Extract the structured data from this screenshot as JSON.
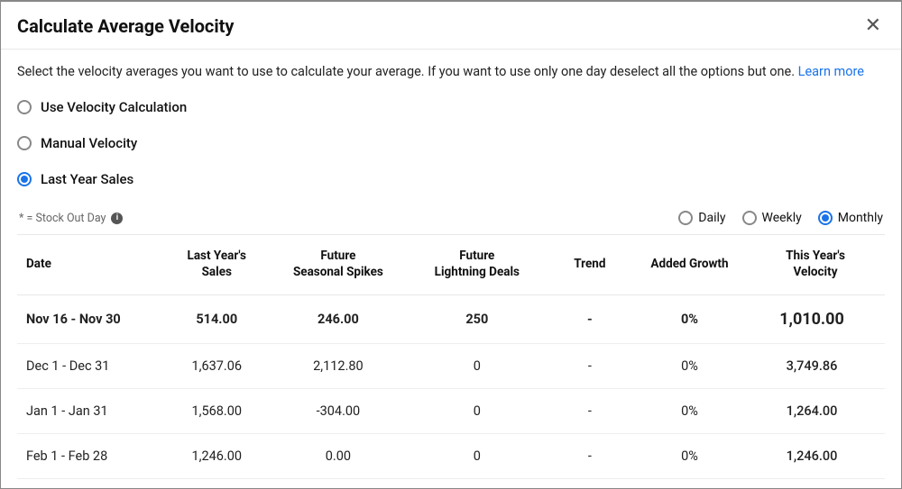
{
  "modal": {
    "title": "Calculate Average Velocity",
    "close_glyph": "✕",
    "description": "Select the velocity averages you want to use to calculate your average. If you want to use only one day deselect all the options but one.",
    "learn_more": "Learn more"
  },
  "velocity_source": {
    "options": [
      {
        "key": "calc",
        "label": "Use Velocity Calculation",
        "selected": false
      },
      {
        "key": "manual",
        "label": "Manual Velocity",
        "selected": false
      },
      {
        "key": "last",
        "label": "Last Year Sales",
        "selected": true
      }
    ]
  },
  "stock_note": "* = Stock Out Day",
  "period": {
    "options": [
      {
        "key": "daily",
        "label": "Daily",
        "selected": false
      },
      {
        "key": "weekly",
        "label": "Weekly",
        "selected": false
      },
      {
        "key": "monthly",
        "label": "Monthly",
        "selected": true
      }
    ]
  },
  "table": {
    "columns": {
      "date": "Date",
      "sales": "Last Year's\nSales",
      "spikes": "Future\nSeasonal Spikes",
      "deals": "Future\nLightning Deals",
      "trend": "Trend",
      "growth": "Added Growth",
      "velocity": "This Year's\nVelocity"
    },
    "rows": [
      {
        "date": "Nov 16 - Nov 30",
        "sales": "514.00",
        "spikes": "246.00",
        "deals": "250",
        "trend": "-",
        "growth": "0%",
        "velocity": "1,010.00",
        "current": true
      },
      {
        "date": "Dec 1 - Dec 31",
        "sales": "1,637.06",
        "spikes": "2,112.80",
        "deals": "0",
        "trend": "-",
        "growth": "0%",
        "velocity": "3,749.86",
        "current": false
      },
      {
        "date": "Jan 1 - Jan 31",
        "sales": "1,568.00",
        "spikes": "-304.00",
        "deals": "0",
        "trend": "-",
        "growth": "0%",
        "velocity": "1,264.00",
        "current": false
      },
      {
        "date": "Feb 1 - Feb 28",
        "sales": "1,246.00",
        "spikes": "0.00",
        "deals": "0",
        "trend": "-",
        "growth": "0%",
        "velocity": "1,246.00",
        "current": false
      }
    ]
  }
}
